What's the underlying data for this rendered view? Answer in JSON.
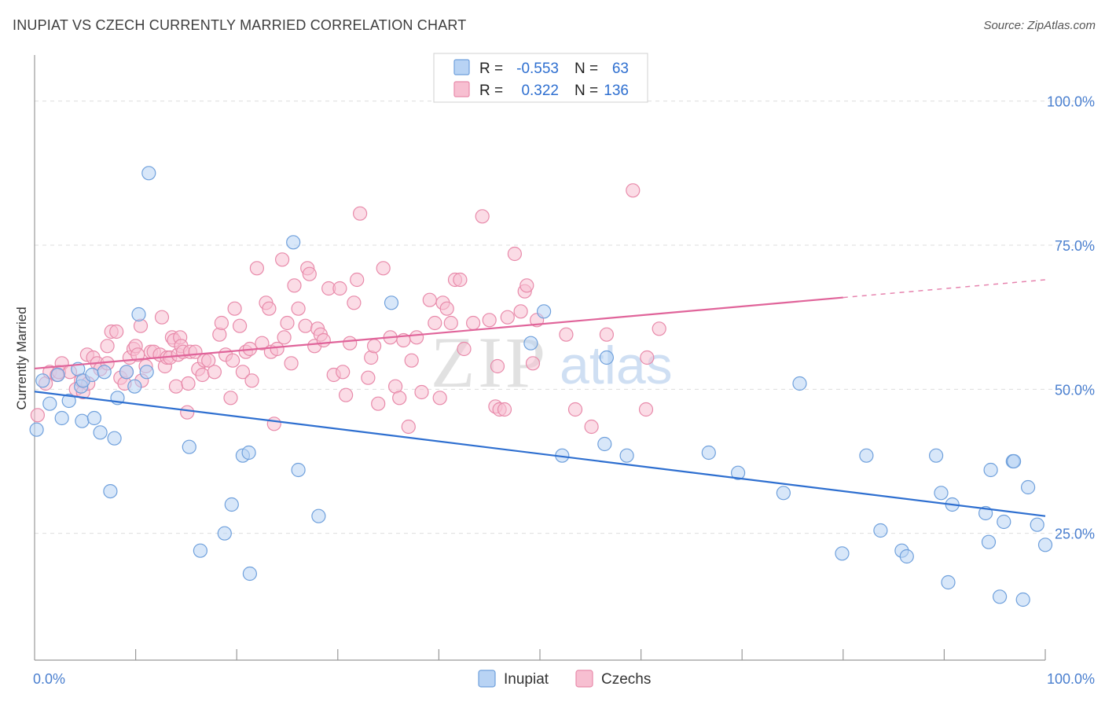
{
  "title": "INUPIAT VS CZECH CURRENTLY MARRIED CORRELATION CHART",
  "source": "Source: ZipAtlas.com",
  "watermark": {
    "zip": "ZIP",
    "atlas": "atlas"
  },
  "colors": {
    "inupiat_fill": "#b8d3f4",
    "inupiat_stroke": "#6fa0dc",
    "inupiat_line": "#2e6fd0",
    "czech_fill": "#f7bfd1",
    "czech_stroke": "#e88aaa",
    "czech_line": "#e0649a",
    "tick_label": "#4a7fcf",
    "grid": "#dddddd"
  },
  "chart_data": {
    "type": "scatter",
    "ylabel": "Currently Married",
    "xlim": [
      0,
      100
    ],
    "ylim": [
      3,
      108
    ],
    "x_tick_labels": [
      {
        "value": 0,
        "label": "0.0%"
      },
      {
        "value": 100,
        "label": "100.0%"
      }
    ],
    "y_tick_labels": [
      {
        "value": 25,
        "label": "25.0%"
      },
      {
        "value": 50,
        "label": "50.0%"
      },
      {
        "value": 75,
        "label": "75.0%"
      },
      {
        "value": 100,
        "label": "100.0%"
      }
    ],
    "grid": true,
    "legend_position": "bottom",
    "stats_box": {
      "rows": [
        {
          "series": "Inupiat",
          "r_label": "R =",
          "r_value": "-0.553",
          "n_label": "N =",
          "n_value": "63"
        },
        {
          "series": "Czechs",
          "r_label": "R =",
          "r_value": "0.322",
          "n_label": "N =",
          "n_value": "136"
        }
      ]
    },
    "series": [
      {
        "name": "Inupiat",
        "trend": {
          "x": [
            0,
            100
          ],
          "y": [
            49.6,
            28.0
          ],
          "dashed_from": null
        },
        "points": [
          [
            0.2,
            43
          ],
          [
            0.8,
            51.5
          ],
          [
            1.5,
            47.5
          ],
          [
            2.3,
            52.5
          ],
          [
            2.7,
            45
          ],
          [
            3.4,
            48
          ],
          [
            4.3,
            53.5
          ],
          [
            4.6,
            50.5
          ],
          [
            4.7,
            44.5
          ],
          [
            4.8,
            51.5
          ],
          [
            5.7,
            52.5
          ],
          [
            5.9,
            45
          ],
          [
            6.5,
            42.5
          ],
          [
            6.9,
            53
          ],
          [
            7.5,
            32.3
          ],
          [
            7.9,
            41.5
          ],
          [
            8.2,
            48.5
          ],
          [
            9.1,
            53
          ],
          [
            9.9,
            50.5
          ],
          [
            10.3,
            63
          ],
          [
            11.1,
            53
          ],
          [
            11.3,
            87.5
          ],
          [
            15.3,
            40
          ],
          [
            16.4,
            22
          ],
          [
            18.8,
            25
          ],
          [
            19.5,
            30
          ],
          [
            20.6,
            38.5
          ],
          [
            21.2,
            39
          ],
          [
            21.3,
            18
          ],
          [
            25.6,
            75.5
          ],
          [
            26.1,
            36
          ],
          [
            28.1,
            28
          ],
          [
            35.3,
            65
          ],
          [
            49.1,
            58
          ],
          [
            50.4,
            63.5
          ],
          [
            52.2,
            38.5
          ],
          [
            56.4,
            40.5
          ],
          [
            56.6,
            55.5
          ],
          [
            58.6,
            38.5
          ],
          [
            66.7,
            39
          ],
          [
            69.6,
            35.5
          ],
          [
            74.1,
            32
          ],
          [
            75.7,
            51
          ],
          [
            79.9,
            21.5
          ],
          [
            82.3,
            38.5
          ],
          [
            83.7,
            25.5
          ],
          [
            85.8,
            22
          ],
          [
            86.3,
            21
          ],
          [
            89.2,
            38.5
          ],
          [
            89.7,
            32
          ],
          [
            90.4,
            16.5
          ],
          [
            90.8,
            30
          ],
          [
            94.1,
            28.5
          ],
          [
            94.4,
            23.5
          ],
          [
            94.6,
            36
          ],
          [
            95.5,
            14
          ],
          [
            95.9,
            27
          ],
          [
            96.8,
            37.5
          ],
          [
            96.9,
            37.5
          ],
          [
            97.8,
            13.5
          ],
          [
            98.3,
            33
          ],
          [
            99.2,
            26.5
          ],
          [
            100,
            23
          ]
        ]
      },
      {
        "name": "Czechs",
        "trend": {
          "x": [
            0,
            100
          ],
          "y": [
            53.6,
            69.0
          ],
          "dashed_from": 80
        },
        "points": [
          [
            0.3,
            45.5
          ],
          [
            1.1,
            51
          ],
          [
            1.5,
            53
          ],
          [
            2.2,
            52.5
          ],
          [
            2.4,
            53
          ],
          [
            2.7,
            54.5
          ],
          [
            3.5,
            53
          ],
          [
            4.1,
            50
          ],
          [
            4.6,
            51.5
          ],
          [
            4.8,
            49.5
          ],
          [
            5.2,
            56
          ],
          [
            5.3,
            51
          ],
          [
            5.8,
            55.5
          ],
          [
            6.2,
            54.5
          ],
          [
            6.5,
            53.5
          ],
          [
            7.2,
            54.5
          ],
          [
            7.2,
            57.5
          ],
          [
            7.6,
            60
          ],
          [
            8.1,
            60
          ],
          [
            8.5,
            52
          ],
          [
            8.9,
            51
          ],
          [
            9.1,
            53
          ],
          [
            9.4,
            55.5
          ],
          [
            9.8,
            57
          ],
          [
            10,
            57.5
          ],
          [
            10.2,
            56
          ],
          [
            10.5,
            61
          ],
          [
            10.6,
            51.5
          ],
          [
            11,
            54
          ],
          [
            11.5,
            56.5
          ],
          [
            11.8,
            56.5
          ],
          [
            12.4,
            56
          ],
          [
            12.6,
            62.5
          ],
          [
            12.9,
            54
          ],
          [
            13.1,
            55.5
          ],
          [
            13.4,
            55.5
          ],
          [
            13.6,
            59
          ],
          [
            13.8,
            58.5
          ],
          [
            14,
            50.5
          ],
          [
            14.2,
            56
          ],
          [
            14.4,
            59
          ],
          [
            14.5,
            57.5
          ],
          [
            14.7,
            56.5
          ],
          [
            15.1,
            46
          ],
          [
            15.2,
            51
          ],
          [
            15.4,
            56.5
          ],
          [
            15.9,
            56.5
          ],
          [
            16.2,
            53.5
          ],
          [
            16.6,
            52.5
          ],
          [
            16.8,
            55
          ],
          [
            17.2,
            55
          ],
          [
            17.8,
            53
          ],
          [
            18.3,
            59.5
          ],
          [
            18.5,
            61.5
          ],
          [
            18.9,
            56
          ],
          [
            19.4,
            48.5
          ],
          [
            19.6,
            55
          ],
          [
            19.8,
            64
          ],
          [
            20.3,
            61
          ],
          [
            20.6,
            53
          ],
          [
            20.9,
            56.5
          ],
          [
            21.3,
            57
          ],
          [
            21.5,
            51.5
          ],
          [
            22,
            71
          ],
          [
            22.5,
            58
          ],
          [
            22.9,
            65
          ],
          [
            23.2,
            64
          ],
          [
            23.4,
            56.5
          ],
          [
            23.7,
            44
          ],
          [
            24,
            57
          ],
          [
            24.5,
            72.5
          ],
          [
            24.7,
            59
          ],
          [
            25,
            61.5
          ],
          [
            25.4,
            54.5
          ],
          [
            25.7,
            68
          ],
          [
            26.1,
            64
          ],
          [
            26.8,
            61
          ],
          [
            27,
            71
          ],
          [
            27.2,
            70
          ],
          [
            27.7,
            57.5
          ],
          [
            28,
            60.5
          ],
          [
            28.3,
            59.5
          ],
          [
            28.6,
            58.5
          ],
          [
            29.1,
            67.5
          ],
          [
            29.6,
            52.5
          ],
          [
            30.2,
            67.5
          ],
          [
            30.5,
            53
          ],
          [
            30.8,
            49
          ],
          [
            31.2,
            58
          ],
          [
            31.6,
            65
          ],
          [
            31.9,
            69
          ],
          [
            32.2,
            80.5
          ],
          [
            33,
            52
          ],
          [
            33.3,
            55.5
          ],
          [
            33.6,
            57.5
          ],
          [
            34,
            47.5
          ],
          [
            34.5,
            71
          ],
          [
            35.2,
            59
          ],
          [
            35.7,
            50.5
          ],
          [
            36.1,
            48.5
          ],
          [
            36.5,
            58.5
          ],
          [
            37,
            43.5
          ],
          [
            37.3,
            55
          ],
          [
            37.8,
            59
          ],
          [
            38.3,
            49.5
          ],
          [
            39.1,
            65.5
          ],
          [
            39.6,
            61.5
          ],
          [
            40.1,
            48.5
          ],
          [
            40.4,
            65
          ],
          [
            40.8,
            64
          ],
          [
            41.2,
            61.5
          ],
          [
            41.6,
            69
          ],
          [
            42.1,
            69
          ],
          [
            42.5,
            57
          ],
          [
            43.4,
            61.5
          ],
          [
            44.3,
            80
          ],
          [
            45,
            62
          ],
          [
            45.6,
            47
          ],
          [
            45.8,
            54
          ],
          [
            46,
            46.5
          ],
          [
            46.5,
            46.5
          ],
          [
            46.8,
            62.5
          ],
          [
            47.5,
            73.5
          ],
          [
            48.1,
            63.5
          ],
          [
            48.5,
            67
          ],
          [
            48.7,
            68
          ],
          [
            49.3,
            54.5
          ],
          [
            49.7,
            62
          ],
          [
            52.6,
            59.5
          ],
          [
            53.5,
            46.5
          ],
          [
            55.1,
            43.5
          ],
          [
            56.6,
            59.5
          ],
          [
            59.2,
            84.5
          ],
          [
            60.5,
            46.5
          ],
          [
            60.6,
            55.5
          ],
          [
            61.8,
            60.5
          ]
        ]
      }
    ]
  }
}
